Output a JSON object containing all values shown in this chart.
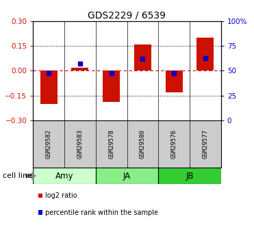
{
  "title": "GDS2229 / 6539",
  "samples": [
    "GSM29582",
    "GSM29583",
    "GSM29578",
    "GSM29580",
    "GSM29576",
    "GSM29577"
  ],
  "log2_ratio": [
    -0.2,
    0.02,
    -0.19,
    0.16,
    -0.13,
    0.2
  ],
  "percentile_rank": [
    47.5,
    57.0,
    47.5,
    62.0,
    47.5,
    63.0
  ],
  "groups": [
    {
      "label": "Amy",
      "start": 0,
      "end": 2,
      "color": "#ccffcc"
    },
    {
      "label": "JA",
      "start": 2,
      "end": 4,
      "color": "#88ee88"
    },
    {
      "label": "JB",
      "start": 4,
      "end": 6,
      "color": "#33cc33"
    }
  ],
  "ylim_left": [
    -0.3,
    0.3
  ],
  "ylim_right": [
    0,
    100
  ],
  "yticks_left": [
    -0.3,
    -0.15,
    0.0,
    0.15,
    0.3
  ],
  "yticks_right": [
    0,
    25,
    50,
    75,
    100
  ],
  "ytick_labels_right": [
    "0",
    "25",
    "50",
    "75",
    "100%"
  ],
  "hlines_dotted": [
    -0.15,
    0.15
  ],
  "zero_line_color": "#cc0000",
  "dotted_color": "#000000",
  "bar_color": "#cc1100",
  "percentile_color": "#0000cc",
  "bar_width": 0.55,
  "percentile_marker_size": 5,
  "bg_color": "#ffffff",
  "left_axis_color": "#cc1100",
  "right_axis_color": "#0000cc",
  "sample_label_bg": "#cccccc",
  "legend_items": [
    {
      "label": "log2 ratio",
      "color": "#cc1100"
    },
    {
      "label": "percentile rank within the sample",
      "color": "#0000cc"
    }
  ],
  "cell_line_label": "cell line"
}
